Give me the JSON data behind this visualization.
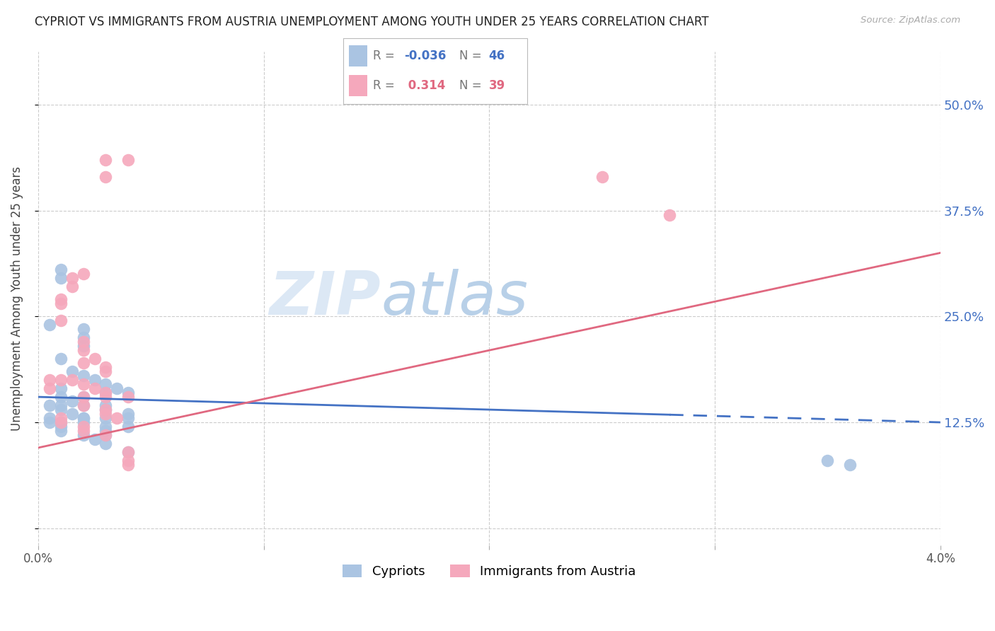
{
  "title": "CYPRIOT VS IMMIGRANTS FROM AUSTRIA UNEMPLOYMENT AMONG YOUTH UNDER 25 YEARS CORRELATION CHART",
  "source": "Source: ZipAtlas.com",
  "ylabel": "Unemployment Among Youth under 25 years",
  "xmin": 0.0,
  "xmax": 0.04,
  "ymin": -0.02,
  "ymax": 0.5625,
  "yticks": [
    0.0,
    0.125,
    0.25,
    0.375,
    0.5
  ],
  "ytick_labels": [
    "",
    "12.5%",
    "25.0%",
    "37.5%",
    "50.0%"
  ],
  "xticks": [
    0.0,
    0.01,
    0.02,
    0.03,
    0.04
  ],
  "xtick_labels": [
    "0.0%",
    "",
    "",
    "",
    "4.0%"
  ],
  "series1_color": "#aac4e2",
  "series2_color": "#f5a8bc",
  "line1_color": "#4472C4",
  "line2_color": "#E06880",
  "watermark_color": "#dce8f5",
  "cypriot_x": [
    0.001,
    0.001,
    0.002,
    0.002,
    0.002,
    0.003,
    0.004,
    0.004,
    0.0005,
    0.001,
    0.0015,
    0.002,
    0.0025,
    0.003,
    0.0035,
    0.004,
    0.001,
    0.002,
    0.003,
    0.001,
    0.0015,
    0.002,
    0.003,
    0.004,
    0.0005,
    0.001,
    0.001,
    0.0015,
    0.002,
    0.002,
    0.003,
    0.003,
    0.003,
    0.004,
    0.003,
    0.002,
    0.001,
    0.001,
    0.0005,
    0.0005,
    0.001,
    0.002,
    0.0025,
    0.003,
    0.035,
    0.036
  ],
  "cypriot_y": [
    0.305,
    0.295,
    0.235,
    0.225,
    0.215,
    0.16,
    0.135,
    0.12,
    0.24,
    0.2,
    0.185,
    0.18,
    0.175,
    0.17,
    0.165,
    0.16,
    0.165,
    0.155,
    0.145,
    0.155,
    0.15,
    0.145,
    0.14,
    0.13,
    0.145,
    0.145,
    0.14,
    0.135,
    0.13,
    0.125,
    0.12,
    0.115,
    0.11,
    0.09,
    0.13,
    0.13,
    0.125,
    0.12,
    0.13,
    0.125,
    0.115,
    0.11,
    0.105,
    0.1,
    0.08,
    0.075
  ],
  "austria_x": [
    0.003,
    0.004,
    0.003,
    0.025,
    0.028,
    0.002,
    0.0015,
    0.0015,
    0.001,
    0.001,
    0.001,
    0.002,
    0.002,
    0.0025,
    0.002,
    0.003,
    0.003,
    0.0005,
    0.0005,
    0.001,
    0.0015,
    0.002,
    0.0025,
    0.003,
    0.004,
    0.003,
    0.004,
    0.004,
    0.002,
    0.002,
    0.003,
    0.003,
    0.0035,
    0.001,
    0.001,
    0.002,
    0.002,
    0.003,
    0.004
  ],
  "austria_y": [
    0.435,
    0.435,
    0.415,
    0.415,
    0.37,
    0.3,
    0.295,
    0.285,
    0.27,
    0.265,
    0.245,
    0.22,
    0.21,
    0.2,
    0.195,
    0.19,
    0.185,
    0.175,
    0.165,
    0.175,
    0.175,
    0.17,
    0.165,
    0.16,
    0.155,
    0.155,
    0.09,
    0.08,
    0.155,
    0.145,
    0.14,
    0.135,
    0.13,
    0.13,
    0.125,
    0.12,
    0.115,
    0.11,
    0.075
  ],
  "line1_x0": 0.0,
  "line1_x1": 0.04,
  "line1_y0": 0.155,
  "line1_y1": 0.125,
  "line1_solid_end": 0.028,
  "line2_x0": 0.0,
  "line2_x1": 0.04,
  "line2_y0": 0.095,
  "line2_y1": 0.325
}
